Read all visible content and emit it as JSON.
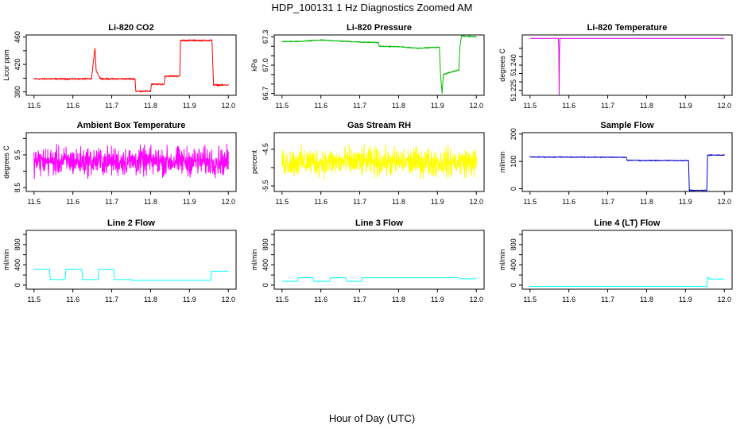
{
  "page": {
    "title": "HDP_100131  1 Hz Diagnostics Zoomed AM",
    "xlabel": "Hour of Day (UTC)"
  },
  "chart_data": [
    {
      "type": "line",
      "title": "Li-820 CO2",
      "ylabel": "Licor ppm",
      "color": "#ff0000",
      "xlim": [
        11.48,
        12.02
      ],
      "ylim": [
        375,
        463
      ],
      "xticks": [
        11.5,
        11.6,
        11.7,
        11.8,
        11.9,
        12.0
      ],
      "yticks": [
        380,
        400,
        420,
        440,
        460
      ],
      "ytick_labels": [
        "380",
        "",
        "420",
        "",
        "460"
      ],
      "series": [
        {
          "noise": 0.8,
          "x": [
            11.5,
            11.648,
            11.652,
            11.657,
            11.66,
            11.67,
            11.68,
            11.76,
            11.762,
            11.8,
            11.802,
            11.835,
            11.837,
            11.875,
            11.877,
            11.958,
            11.962,
            12.0
          ],
          "y": [
            399,
            399,
            420,
            444,
            411,
            400,
            399,
            399,
            381,
            381,
            391,
            391,
            403,
            403,
            455,
            455,
            390,
            390
          ]
        }
      ]
    },
    {
      "type": "line",
      "title": "Li-820 Pressure",
      "ylabel": "kPa",
      "color": "#00bb00",
      "xlim": [
        11.48,
        12.02
      ],
      "ylim": [
        66.68,
        67.32
      ],
      "xticks": [
        11.5,
        11.6,
        11.7,
        11.8,
        11.9,
        12.0
      ],
      "yticks": [
        66.7,
        66.8,
        66.9,
        67.0,
        67.1,
        67.2,
        67.3
      ],
      "ytick_labels": [
        "66.7",
        "",
        "",
        "67.0",
        "",
        "",
        "67.3"
      ],
      "series": [
        {
          "noise": 0.004,
          "x": [
            11.5,
            11.54,
            11.6,
            11.65,
            11.7,
            11.748,
            11.75,
            11.8,
            11.85,
            11.905,
            11.908,
            11.912,
            11.915,
            11.93,
            11.955,
            11.958,
            11.962,
            12.0
          ],
          "y": [
            67.25,
            67.25,
            67.265,
            67.255,
            67.245,
            67.24,
            67.2,
            67.195,
            67.18,
            67.19,
            66.9,
            66.7,
            66.9,
            66.92,
            66.95,
            67.2,
            67.31,
            67.3
          ]
        }
      ]
    },
    {
      "type": "line",
      "title": "Li-820 Temperature",
      "ylabel": "degrees C",
      "color": "#dd00dd",
      "xlim": [
        11.48,
        12.02
      ],
      "ylim": [
        51.222,
        51.258
      ],
      "xticks": [
        11.5,
        11.6,
        11.7,
        11.8,
        11.9,
        12.0
      ],
      "yticks": [
        51.225,
        51.23,
        51.235,
        51.24,
        51.245,
        51.25
      ],
      "ytick_labels": [
        "51.225",
        "",
        "",
        "51.240",
        "",
        ""
      ],
      "series": [
        {
          "noise": 0.0,
          "x": [
            11.5,
            11.573,
            11.574,
            11.575,
            11.576,
            11.577,
            12.0
          ],
          "y": [
            51.256,
            51.256,
            51.25,
            51.2225,
            51.25,
            51.256,
            51.256
          ]
        }
      ]
    },
    {
      "type": "line",
      "title": "Ambient Box Temperature",
      "ylabel": "degrees C",
      "color": "#ff00ff",
      "xlim": [
        11.48,
        12.02
      ],
      "ylim": [
        8.38,
        10.18
      ],
      "xticks": [
        11.5,
        11.6,
        11.7,
        11.8,
        11.9,
        12.0
      ],
      "yticks": [
        8.5,
        9.0,
        9.5,
        10.0
      ],
      "ytick_labels": [
        "8.5",
        "",
        "9.5",
        ""
      ],
      "series": [
        {
          "noise": 0.3,
          "x": [
            11.5,
            12.0
          ],
          "y": [
            9.3,
            9.3
          ]
        }
      ]
    },
    {
      "type": "line",
      "title": "Gas Stream RH",
      "ylabel": "percent",
      "color": "#ffff00",
      "xlim": [
        11.48,
        12.02
      ],
      "ylim": [
        -5.65,
        -4.05
      ],
      "xticks": [
        11.5,
        11.6,
        11.7,
        11.8,
        11.9,
        12.0
      ],
      "yticks": [
        -5.5,
        -5.0,
        -4.5
      ],
      "ytick_labels": [
        "-5.5",
        "",
        "-4.5"
      ],
      "series": [
        {
          "noise": 0.27,
          "x": [
            11.5,
            12.0
          ],
          "y": [
            -4.85,
            -4.85
          ]
        }
      ]
    },
    {
      "type": "line",
      "title": "Sample Flow",
      "ylabel": "ml/min",
      "color": "#0000cc",
      "xlim": [
        11.48,
        12.02
      ],
      "ylim": [
        -10,
        205
      ],
      "xticks": [
        11.5,
        11.6,
        11.7,
        11.8,
        11.9,
        12.0
      ],
      "yticks": [
        0,
        100,
        200
      ],
      "ytick_labels": [
        "0",
        "100",
        "200"
      ],
      "series": [
        {
          "noise": 1.2,
          "x": [
            11.5,
            11.748,
            11.75,
            11.78,
            11.782,
            11.908,
            11.91,
            11.955,
            11.957,
            12.0
          ],
          "y": [
            116,
            115,
            104,
            104,
            103,
            103,
            -6,
            -6,
            123,
            123
          ]
        }
      ]
    },
    {
      "type": "line",
      "title": "Line 2 Flow",
      "ylabel": "ml/min",
      "color": "#00ffff",
      "xlim": [
        11.48,
        12.02
      ],
      "ylim": [
        -80,
        1080
      ],
      "xticks": [
        11.5,
        11.6,
        11.7,
        11.8,
        11.9,
        12.0
      ],
      "yticks": [
        0,
        200,
        400,
        600,
        800,
        1000
      ],
      "ytick_labels": [
        "0",
        "",
        "400",
        "",
        "800",
        ""
      ],
      "series": [
        {
          "noise": 0.0,
          "x": [
            11.5,
            11.54,
            11.542,
            11.58,
            11.582,
            11.623,
            11.625,
            11.665,
            11.667,
            11.705,
            11.707,
            11.75,
            11.752,
            11.955,
            11.957,
            12.0
          ],
          "y": [
            310,
            310,
            110,
            110,
            310,
            310,
            110,
            110,
            310,
            310,
            110,
            110,
            95,
            95,
            275,
            275
          ]
        }
      ]
    },
    {
      "type": "line",
      "title": "Line 3 Flow",
      "ylabel": "ml/min",
      "color": "#00ffff",
      "xlim": [
        11.48,
        12.02
      ],
      "ylim": [
        -80,
        1080
      ],
      "xticks": [
        11.5,
        11.6,
        11.7,
        11.8,
        11.9,
        12.0
      ],
      "yticks": [
        0,
        200,
        400,
        600,
        800,
        1000
      ],
      "ytick_labels": [
        "0",
        "",
        "400",
        "",
        "800",
        ""
      ],
      "series": [
        {
          "noise": 0.0,
          "x": [
            11.5,
            11.54,
            11.542,
            11.58,
            11.582,
            11.623,
            11.625,
            11.665,
            11.667,
            11.705,
            11.707,
            11.955,
            11.957,
            12.0
          ],
          "y": [
            75,
            75,
            145,
            145,
            75,
            75,
            145,
            145,
            75,
            75,
            145,
            145,
            125,
            125
          ]
        }
      ]
    },
    {
      "type": "line",
      "title": "Line 4 (LT) Flow",
      "ylabel": "ml/min",
      "color": "#00ffff",
      "xlim": [
        11.48,
        12.02
      ],
      "ylim": [
        -80,
        1080
      ],
      "xticks": [
        11.5,
        11.6,
        11.7,
        11.8,
        11.9,
        12.0
      ],
      "yticks": [
        0,
        200,
        400,
        600,
        800,
        1000
      ],
      "ytick_labels": [
        "0",
        "",
        "400",
        "",
        "800",
        ""
      ],
      "series": [
        {
          "noise": 0.0,
          "x": [
            11.5,
            11.955,
            11.957,
            11.962,
            11.964,
            12.0
          ],
          "y": [
            -25,
            -25,
            160,
            120,
            120,
            120
          ]
        }
      ]
    }
  ]
}
